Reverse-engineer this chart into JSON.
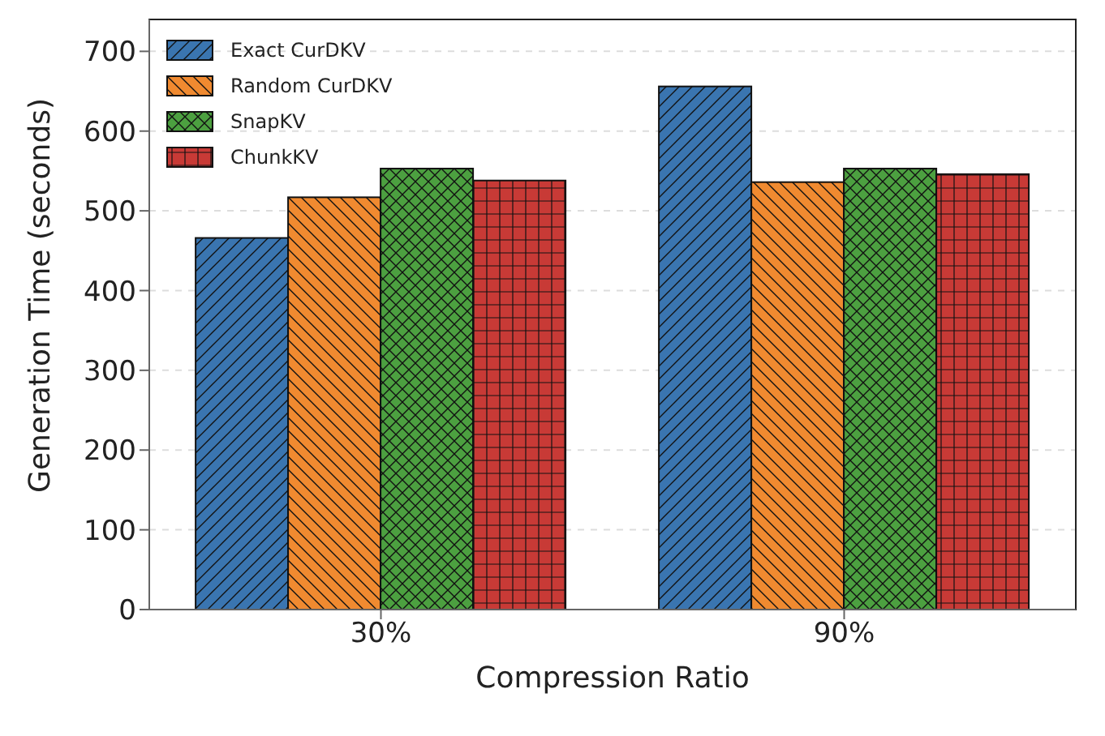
{
  "chart_data": {
    "type": "bar",
    "xlabel": "Compression Ratio",
    "ylabel": "Generation Time (seconds)",
    "categories": [
      "30%",
      "90%"
    ],
    "series": [
      {
        "name": "Exact CurDKV",
        "color": "#3a75b0",
        "values": [
          466,
          656
        ]
      },
      {
        "name": "Random CurDKV",
        "color": "#f08a30",
        "values": [
          517,
          536
        ]
      },
      {
        "name": "SnapKV",
        "color": "#4ca040",
        "values": [
          553,
          553
        ]
      },
      {
        "name": "ChunkKV",
        "color": "#c83a36",
        "values": [
          538,
          546
        ]
      }
    ],
    "ylim": [
      0,
      740
    ],
    "yticks": [
      0,
      100,
      200,
      300,
      400,
      500,
      600,
      700
    ],
    "grid": "y",
    "legend": "top left"
  }
}
